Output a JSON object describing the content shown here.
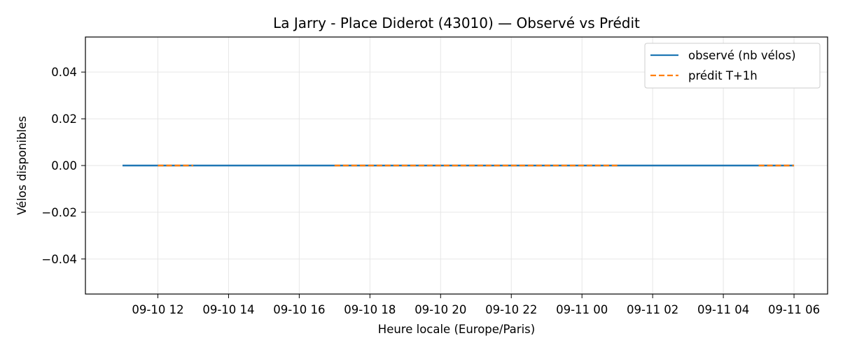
{
  "chart_data": {
    "type": "line",
    "title": "La Jarry - Place Diderot (43010) — Observé vs Prédit",
    "xlabel": "Heure locale (Europe/Paris)",
    "ylabel": "Vélos disponibles",
    "x_tick_labels": [
      "09-10 12",
      "09-10 14",
      "09-10 16",
      "09-10 18",
      "09-10 20",
      "09-10 22",
      "09-11 00",
      "09-11 02",
      "09-11 04",
      "09-11 06"
    ],
    "x_ticks_hours": [
      12,
      14,
      16,
      18,
      20,
      22,
      24,
      26,
      28,
      30
    ],
    "xlim_hours": [
      9.95,
      30.95
    ],
    "y_ticks": [
      -0.04,
      -0.02,
      0.0,
      0.02,
      0.04
    ],
    "y_tick_labels": [
      "−0.04",
      "−0.02",
      "0.00",
      "0.02",
      "0.04"
    ],
    "ylim": [
      -0.055,
      0.055
    ],
    "grid": true,
    "legend_position": "top-right",
    "series": [
      {
        "name": "observé (nb vélos)",
        "color": "#1f77b4",
        "style": "solid",
        "segments": [
          {
            "x": [
              "09-10 11:00",
              "09-11 06:00"
            ],
            "y": [
              0,
              0
            ]
          }
        ]
      },
      {
        "name": "prédit T+1h",
        "color": "#ff7f0e",
        "style": "dashed",
        "segments": [
          {
            "x": [
              "09-10 12:00",
              "09-10 13:00"
            ],
            "y": [
              0,
              0
            ]
          },
          {
            "x": [
              "09-10 17:00",
              "09-11 01:00"
            ],
            "y": [
              0,
              0
            ]
          },
          {
            "x": [
              "09-11 05:00",
              "09-11 06:00"
            ],
            "y": [
              0,
              0
            ]
          }
        ]
      }
    ]
  }
}
